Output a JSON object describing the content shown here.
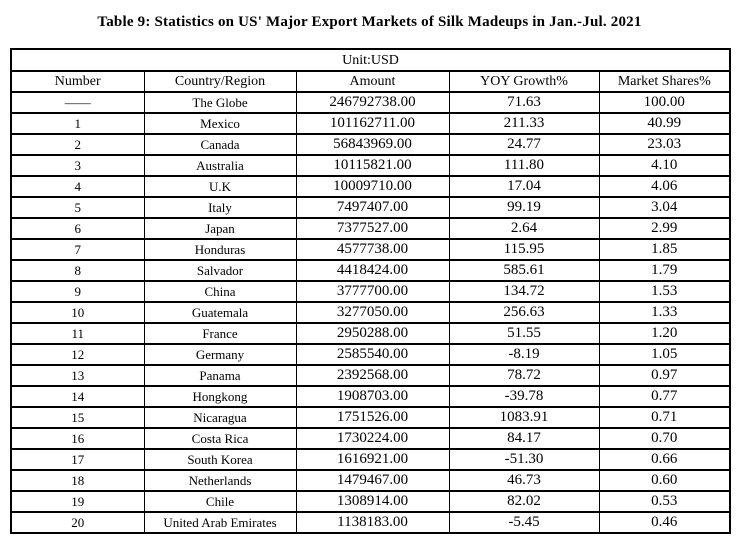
{
  "page": {
    "title": "Table 9: Statistics on US' Major Export Markets of Silk Madeups in Jan.-Jul. 2021"
  },
  "table": {
    "unit_label": "Unit:USD",
    "headers": [
      "Number",
      "Country/Region",
      "Amount",
      "YOY Growth%",
      "Market Shares%"
    ],
    "rows": [
      {
        "number": "——",
        "country": "The Globe",
        "amount": "246792738.00",
        "yoy_growth": "71.63",
        "market_share": "100.00"
      },
      {
        "number": "1",
        "country": "Mexico",
        "amount": "101162711.00",
        "yoy_growth": "211.33",
        "market_share": "40.99"
      },
      {
        "number": "2",
        "country": "Canada",
        "amount": "56843969.00",
        "yoy_growth": "24.77",
        "market_share": "23.03"
      },
      {
        "number": "3",
        "country": "Australia",
        "amount": "10115821.00",
        "yoy_growth": "111.80",
        "market_share": "4.10"
      },
      {
        "number": "4",
        "country": "U.K",
        "amount": "10009710.00",
        "yoy_growth": "17.04",
        "market_share": "4.06"
      },
      {
        "number": "5",
        "country": "Italy",
        "amount": "7497407.00",
        "yoy_growth": "99.19",
        "market_share": "3.04"
      },
      {
        "number": "6",
        "country": "Japan",
        "amount": "7377527.00",
        "yoy_growth": "2.64",
        "market_share": "2.99"
      },
      {
        "number": "7",
        "country": "Honduras",
        "amount": "4577738.00",
        "yoy_growth": "115.95",
        "market_share": "1.85"
      },
      {
        "number": "8",
        "country": "Salvador",
        "amount": "4418424.00",
        "yoy_growth": "585.61",
        "market_share": "1.79"
      },
      {
        "number": "9",
        "country": "China",
        "amount": "3777700.00",
        "yoy_growth": "134.72",
        "market_share": "1.53"
      },
      {
        "number": "10",
        "country": "Guatemala",
        "amount": "3277050.00",
        "yoy_growth": "256.63",
        "market_share": "1.33"
      },
      {
        "number": "11",
        "country": "France",
        "amount": "2950288.00",
        "yoy_growth": "51.55",
        "market_share": "1.20"
      },
      {
        "number": "12",
        "country": "Germany",
        "amount": "2585540.00",
        "yoy_growth": "-8.19",
        "market_share": "1.05"
      },
      {
        "number": "13",
        "country": "Panama",
        "amount": "2392568.00",
        "yoy_growth": "78.72",
        "market_share": "0.97"
      },
      {
        "number": "14",
        "country": "Hongkong",
        "amount": "1908703.00",
        "yoy_growth": "-39.78",
        "market_share": "0.77"
      },
      {
        "number": "15",
        "country": "Nicaragua",
        "amount": "1751526.00",
        "yoy_growth": "1083.91",
        "market_share": "0.71"
      },
      {
        "number": "16",
        "country": "Costa Rica",
        "amount": "1730224.00",
        "yoy_growth": "84.17",
        "market_share": "0.70"
      },
      {
        "number": "17",
        "country": "South Korea",
        "amount": "1616921.00",
        "yoy_growth": "-51.30",
        "market_share": "0.66"
      },
      {
        "number": "18",
        "country": "Netherlands",
        "amount": "1479467.00",
        "yoy_growth": "46.73",
        "market_share": "0.60"
      },
      {
        "number": "19",
        "country": "Chile",
        "amount": "1308914.00",
        "yoy_growth": "82.02",
        "market_share": "0.53"
      },
      {
        "number": "20",
        "country": "United Arab Emirates",
        "amount": "1138183.00",
        "yoy_growth": "-5.45",
        "market_share": "0.46"
      }
    ]
  }
}
